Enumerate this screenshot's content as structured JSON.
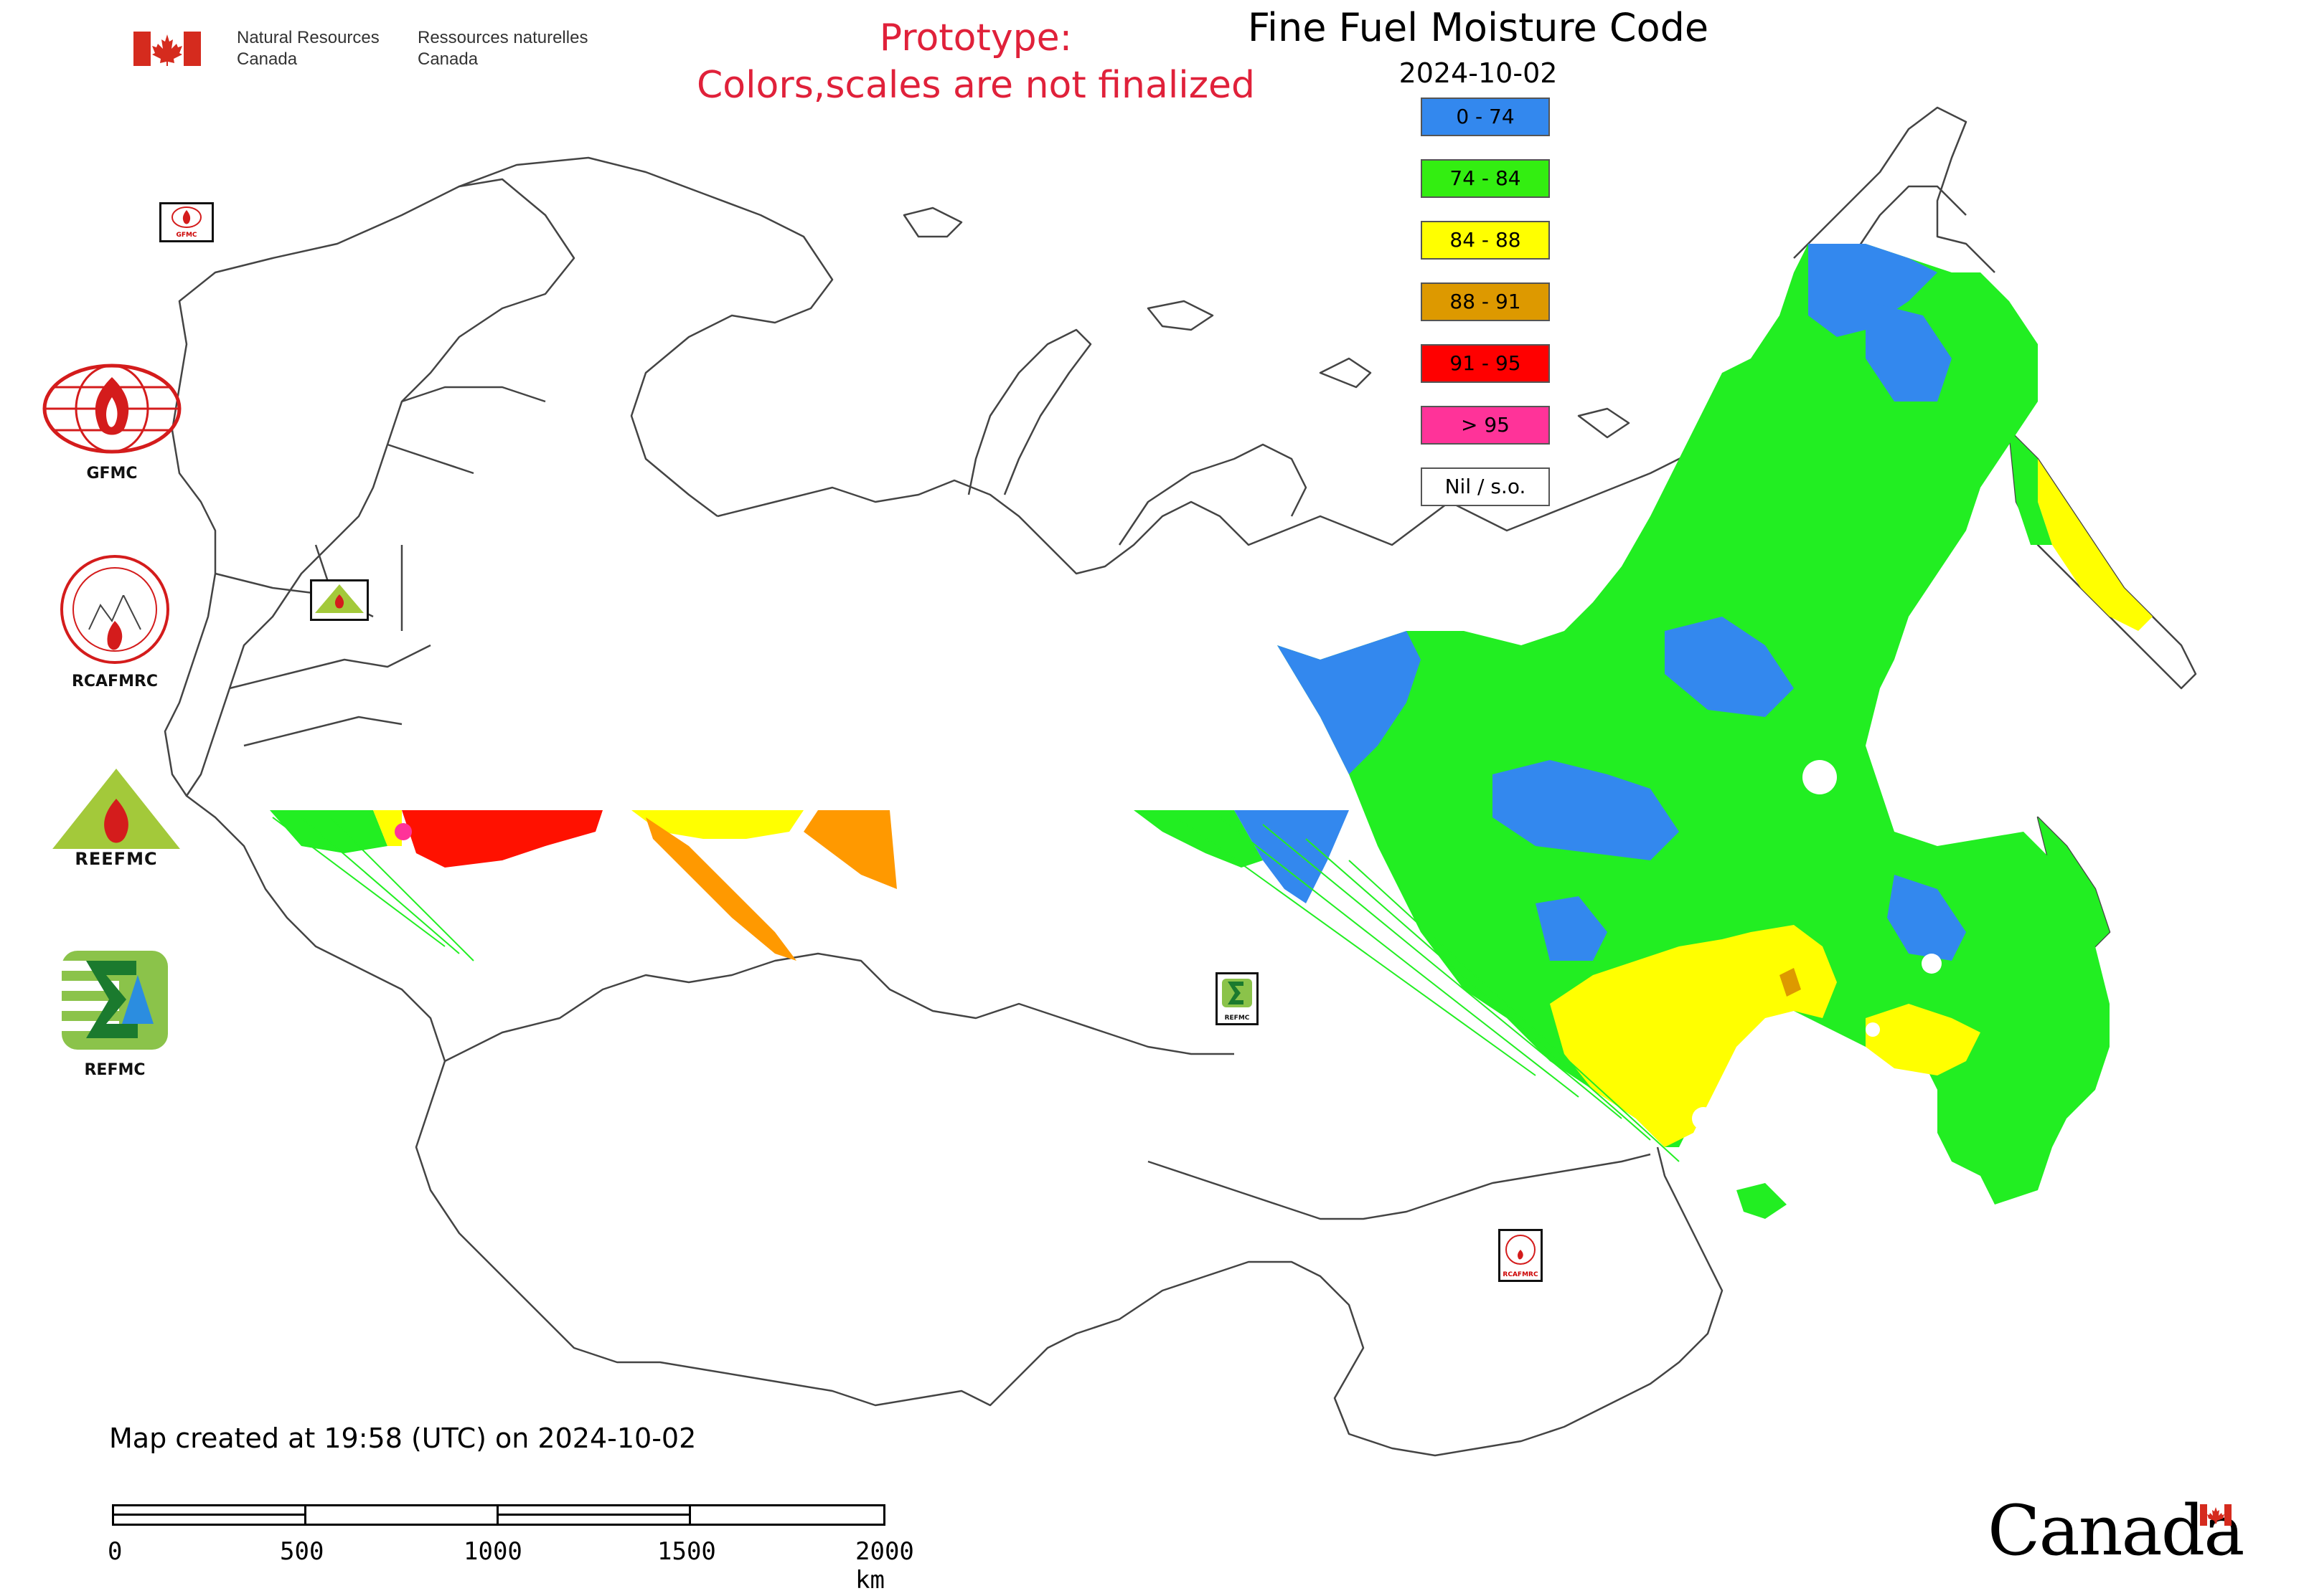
{
  "header": {
    "fip_en_1": "Natural Resources",
    "fip_en_2": "Canada",
    "fip_fr_1": "Ressources naturelles",
    "fip_fr_2": "Canada",
    "prototype_line1": "Prototype:",
    "prototype_line2": "Colors,scales are not finalized",
    "title": "Fine Fuel Moisture Code",
    "date": "2024-10-02"
  },
  "legend": [
    {
      "label": "0 - 74",
      "color": "#3388ee"
    },
    {
      "label": "74 - 84",
      "color": "#33ee11"
    },
    {
      "label": "84 - 88",
      "color": "#ffff00"
    },
    {
      "label": "88 - 91",
      "color": "#dd9900"
    },
    {
      "label": "91 - 95",
      "color": "#ff0000"
    },
    {
      "label": "> 95",
      "color": "#ff3399"
    },
    {
      "label": "Nil / s.o.",
      "color": "#ffffff"
    }
  ],
  "badges": {
    "gfmc": "GFMC",
    "rcafmrc": "RCAFMRC",
    "reefmc_logo_text": "REEFMC",
    "refmc": "REFMC"
  },
  "map_markers": {
    "gfmc_small": "GFMC",
    "rcafmrc_small": "RCAFMRC",
    "refmc_small": "REFMC"
  },
  "footer": {
    "created": "Map created at 19:58 (UTC) on 2024-10-02",
    "scale_labels": [
      "0",
      "500",
      "1000",
      "1500",
      "2000 km"
    ],
    "wordmark": "Canada"
  },
  "icons": {
    "flag": "canada-flag-icon",
    "gfmc": "gfmc-globe-fire-icon",
    "rcafmrc": "rcafmrc-seal-icon",
    "reefmc": "reefmc-triangle-icon",
    "refmc": "refmc-sigma-icon"
  }
}
